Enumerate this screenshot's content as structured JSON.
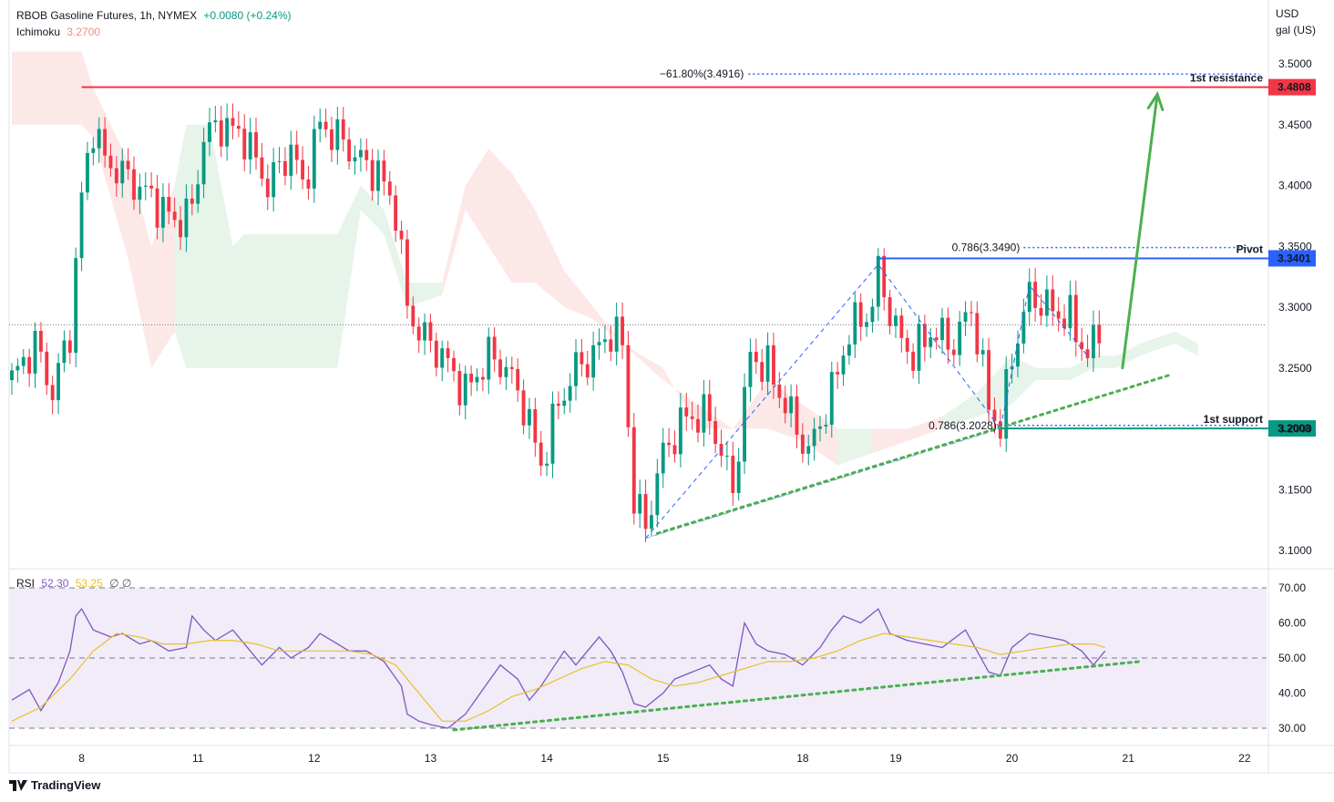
{
  "header": {
    "symbol": "RBOB Gasoline Futures, 1h, NYMEX",
    "change": "+0.0080 (+0.24%)",
    "indicator_name": "Ichimoku",
    "indicator_value": "3.2700",
    "rsi_name": "RSI",
    "rsi_value": "52.30",
    "rsi_ma_value": "53.25",
    "rsi_extra": "∅ ∅"
  },
  "axis_unit": [
    "USD",
    "gal (US)"
  ],
  "brand": "TradingView",
  "colors": {
    "up": "#089981",
    "down": "#f23645",
    "resistance": "#f23645",
    "pivot": "#2962ff",
    "support": "#089981",
    "trend": "#4caf50",
    "rsi": "#7e57c2",
    "rsi_ma": "#e9c02a",
    "cloud_bull": "#e6f4ea",
    "cloud_bear": "#fde8e8"
  },
  "chart_data": [
    {
      "type": "candlestick",
      "title": "RBOB Gasoline Futures, 1h, NYMEX",
      "ylim": [
        3.07,
        3.54
      ],
      "y_ticks": [
        "3.1000",
        "3.1500",
        "3.2000",
        "3.2500",
        "3.3000",
        "3.3500",
        "3.4000",
        "3.4500",
        "3.5000"
      ],
      "y_tick_values": [
        3.1,
        3.15,
        3.2,
        3.25,
        3.3,
        3.35,
        3.4,
        3.45,
        3.5
      ],
      "x_ticks": [
        "8",
        "11",
        "12",
        "13",
        "14",
        "15",
        "18",
        "19",
        "20",
        "21",
        "22"
      ],
      "x_tick_bars": [
        12,
        32,
        52,
        72,
        92,
        112,
        136,
        152,
        172,
        192,
        212
      ],
      "bar_count": 215,
      "close_path": [
        [
          0,
          3.24
        ],
        [
          4,
          3.27
        ],
        [
          7,
          3.23
        ],
        [
          10,
          3.28
        ],
        [
          12,
          3.39
        ],
        [
          14,
          3.45
        ],
        [
          16,
          3.42
        ],
        [
          19,
          3.41
        ],
        [
          24,
          3.39
        ],
        [
          28,
          3.37
        ],
        [
          31,
          3.38
        ],
        [
          33,
          3.44
        ],
        [
          36,
          3.45
        ],
        [
          40,
          3.44
        ],
        [
          44,
          3.4
        ],
        [
          48,
          3.43
        ],
        [
          50,
          3.4
        ],
        [
          53,
          3.45
        ],
        [
          56,
          3.44
        ],
        [
          60,
          3.42
        ],
        [
          63,
          3.41
        ],
        [
          66,
          3.38
        ],
        [
          68,
          3.3
        ],
        [
          70,
          3.28
        ],
        [
          74,
          3.26
        ],
        [
          78,
          3.23
        ],
        [
          82,
          3.26
        ],
        [
          85,
          3.25
        ],
        [
          88,
          3.22
        ],
        [
          91,
          3.17
        ],
        [
          94,
          3.22
        ],
        [
          97,
          3.25
        ],
        [
          100,
          3.26
        ],
        [
          103,
          3.28
        ],
        [
          105,
          3.27
        ],
        [
          107,
          3.14
        ],
        [
          109,
          3.12
        ],
        [
          112,
          3.18
        ],
        [
          116,
          3.21
        ],
        [
          120,
          3.21
        ],
        [
          124,
          3.15
        ],
        [
          127,
          3.26
        ],
        [
          130,
          3.25
        ],
        [
          133,
          3.22
        ],
        [
          137,
          3.18
        ],
        [
          141,
          3.23
        ],
        [
          144,
          3.28
        ],
        [
          148,
          3.3
        ],
        [
          149,
          3.33
        ],
        [
          152,
          3.28
        ],
        [
          155,
          3.26
        ],
        [
          158,
          3.28
        ],
        [
          162,
          3.27
        ],
        [
          165,
          3.3
        ],
        [
          168,
          3.22
        ],
        [
          170,
          3.2
        ],
        [
          172,
          3.26
        ],
        [
          175,
          3.31
        ],
        [
          178,
          3.3
        ],
        [
          182,
          3.29
        ],
        [
          185,
          3.26
        ],
        [
          187,
          3.28
        ]
      ],
      "cloud_top": [
        [
          0,
          3.51
        ],
        [
          12,
          3.51
        ],
        [
          14,
          3.48
        ],
        [
          20,
          3.42
        ],
        [
          24,
          3.35
        ],
        [
          28,
          3.4
        ],
        [
          30,
          3.45
        ],
        [
          34,
          3.45
        ],
        [
          38,
          3.35
        ],
        [
          40,
          3.36
        ],
        [
          50,
          3.36
        ],
        [
          56,
          3.36
        ],
        [
          60,
          3.4
        ],
        [
          64,
          3.38
        ],
        [
          68,
          3.32
        ],
        [
          74,
          3.32
        ],
        [
          78,
          3.4
        ],
        [
          82,
          3.43
        ],
        [
          86,
          3.41
        ],
        [
          90,
          3.38
        ],
        [
          95,
          3.33
        ],
        [
          100,
          3.3
        ],
        [
          105,
          3.27
        ],
        [
          112,
          3.25
        ],
        [
          118,
          3.2
        ],
        [
          124,
          3.2
        ],
        [
          130,
          3.24
        ],
        [
          136,
          3.22
        ],
        [
          142,
          3.2
        ],
        [
          148,
          3.2
        ],
        [
          154,
          3.2
        ],
        [
          160,
          3.21
        ],
        [
          166,
          3.23
        ],
        [
          172,
          3.26
        ],
        [
          176,
          3.25
        ],
        [
          182,
          3.25
        ],
        [
          186,
          3.26
        ],
        [
          190,
          3.26
        ],
        [
          194,
          3.27
        ],
        [
          200,
          3.28
        ],
        [
          204,
          3.27
        ]
      ],
      "cloud_bottom": [
        [
          0,
          3.45
        ],
        [
          12,
          3.45
        ],
        [
          14,
          3.44
        ],
        [
          20,
          3.34
        ],
        [
          24,
          3.25
        ],
        [
          28,
          3.28
        ],
        [
          30,
          3.25
        ],
        [
          34,
          3.25
        ],
        [
          38,
          3.25
        ],
        [
          40,
          3.25
        ],
        [
          50,
          3.25
        ],
        [
          56,
          3.25
        ],
        [
          60,
          3.38
        ],
        [
          64,
          3.36
        ],
        [
          68,
          3.3
        ],
        [
          74,
          3.31
        ],
        [
          78,
          3.38
        ],
        [
          82,
          3.35
        ],
        [
          86,
          3.32
        ],
        [
          90,
          3.32
        ],
        [
          95,
          3.3
        ],
        [
          100,
          3.29
        ],
        [
          105,
          3.27
        ],
        [
          112,
          3.24
        ],
        [
          118,
          3.22
        ],
        [
          124,
          3.2
        ],
        [
          130,
          3.2
        ],
        [
          136,
          3.19
        ],
        [
          142,
          3.17
        ],
        [
          148,
          3.18
        ],
        [
          154,
          3.19
        ],
        [
          160,
          3.2
        ],
        [
          166,
          3.21
        ],
        [
          172,
          3.22
        ],
        [
          176,
          3.24
        ],
        [
          182,
          3.24
        ],
        [
          186,
          3.25
        ],
        [
          190,
          3.25
        ],
        [
          194,
          3.26
        ],
        [
          200,
          3.27
        ],
        [
          204,
          3.26
        ]
      ],
      "cloud_color_by_segment": [
        "bear",
        "bear",
        "bear",
        "bear",
        "bear",
        "bull",
        "bull",
        "bull",
        "bull",
        "bull",
        "bull",
        "bull",
        "bull",
        "bull",
        "bull",
        "bear",
        "bear",
        "bear",
        "bear",
        "bear",
        "bear",
        "bear",
        "bear",
        "bear",
        "bear",
        "bear",
        "bear",
        "bear",
        "bull",
        "bear",
        "bear",
        "bull",
        "bull",
        "bull",
        "bull",
        "bull",
        "bull",
        "bull",
        "bull",
        "bull"
      ],
      "last_price_line": 3.2855,
      "levels": [
        {
          "name": "resistance",
          "value": 3.4808,
          "label": "3.4808",
          "text": "1st resistance",
          "from_bar": 12
        },
        {
          "name": "pivot",
          "value": 3.3401,
          "label": "3.3401",
          "text": "Pivot",
          "from_bar": 149
        },
        {
          "name": "support",
          "value": 3.2003,
          "label": "3.2003",
          "text": "1st support",
          "from_bar": 170
        }
      ],
      "fib_lines": [
        {
          "label": "−61.80%(3.4916)",
          "value": 3.4916,
          "from_bar": 111
        },
        {
          "label": "0.786(3.3490)",
          "value": 3.349,
          "from_bar": 174
        },
        {
          "label": "0.786(3.2028)",
          "value": 3.2028,
          "from_bar": 170
        }
      ],
      "harmonic_pattern": [
        [
          109,
          3.11
        ],
        [
          149,
          3.335
        ],
        [
          170,
          3.2
        ],
        [
          175,
          3.318
        ],
        [
          185,
          3.26
        ]
      ],
      "trendline": [
        [
          111,
          3.114
        ],
        [
          199,
          3.244
        ]
      ],
      "arrow": [
        [
          191,
          3.25
        ],
        [
          197,
          3.475
        ]
      ]
    },
    {
      "type": "line",
      "title": "RSI",
      "ylim": [
        28,
        72
      ],
      "y_ticks": [
        "30.00",
        "40.00",
        "50.00",
        "60.00",
        "70.00"
      ],
      "y_tick_values": [
        30,
        40,
        50,
        60,
        70
      ],
      "band": [
        30,
        70
      ],
      "series": [
        {
          "name": "RSI",
          "values": [
            [
              0,
              38
            ],
            [
              3,
              41
            ],
            [
              5,
              35
            ],
            [
              8,
              43
            ],
            [
              10,
              52
            ],
            [
              11,
              62
            ],
            [
              12,
              64
            ],
            [
              14,
              58
            ],
            [
              17,
              56
            ],
            [
              19,
              57
            ],
            [
              22,
              54
            ],
            [
              24,
              55
            ],
            [
              27,
              52
            ],
            [
              30,
              53
            ],
            [
              31,
              62
            ],
            [
              33,
              58
            ],
            [
              35,
              55
            ],
            [
              38,
              58
            ],
            [
              40,
              54
            ],
            [
              43,
              48
            ],
            [
              46,
              53
            ],
            [
              48,
              50
            ],
            [
              51,
              53
            ],
            [
              53,
              57
            ],
            [
              56,
              54
            ],
            [
              58,
              52
            ],
            [
              61,
              52
            ],
            [
              64,
              49
            ],
            [
              67,
              42
            ],
            [
              68,
              34
            ],
            [
              70,
              32
            ],
            [
              72,
              31
            ],
            [
              75,
              30
            ],
            [
              78,
              34
            ],
            [
              81,
              41
            ],
            [
              84,
              48
            ],
            [
              87,
              44
            ],
            [
              89,
              38
            ],
            [
              91,
              42
            ],
            [
              93,
              47
            ],
            [
              95,
              52
            ],
            [
              97,
              48
            ],
            [
              99,
              52
            ],
            [
              101,
              56
            ],
            [
              103,
              52
            ],
            [
              105,
              46
            ],
            [
              107,
              37
            ],
            [
              109,
              36
            ],
            [
              112,
              40
            ],
            [
              114,
              44
            ],
            [
              117,
              46
            ],
            [
              120,
              48
            ],
            [
              122,
              44
            ],
            [
              124,
              42
            ],
            [
              126,
              60
            ],
            [
              128,
              54
            ],
            [
              130,
              52
            ],
            [
              133,
              51
            ],
            [
              136,
              48
            ],
            [
              139,
              53
            ],
            [
              141,
              58
            ],
            [
              143,
              62
            ],
            [
              146,
              60
            ],
            [
              149,
              64
            ],
            [
              151,
              57
            ],
            [
              154,
              55
            ],
            [
              157,
              54
            ],
            [
              160,
              53
            ],
            [
              164,
              58
            ],
            [
              166,
              52
            ],
            [
              168,
              46
            ],
            [
              170,
              45
            ],
            [
              172,
              53
            ],
            [
              175,
              57
            ],
            [
              178,
              56
            ],
            [
              181,
              55
            ],
            [
              184,
              52
            ],
            [
              186,
              48
            ],
            [
              188,
              52
            ]
          ]
        },
        {
          "name": "RSI MA",
          "values": [
            [
              0,
              32
            ],
            [
              5,
              36
            ],
            [
              10,
              44
            ],
            [
              14,
              52
            ],
            [
              18,
              57
            ],
            [
              22,
              56
            ],
            [
              26,
              54
            ],
            [
              30,
              54
            ],
            [
              34,
              55
            ],
            [
              38,
              55
            ],
            [
              42,
              54
            ],
            [
              46,
              52
            ],
            [
              50,
              52
            ],
            [
              54,
              52
            ],
            [
              58,
              52
            ],
            [
              62,
              51
            ],
            [
              66,
              48
            ],
            [
              70,
              40
            ],
            [
              74,
              32
            ],
            [
              78,
              32
            ],
            [
              82,
              35
            ],
            [
              86,
              39
            ],
            [
              90,
              41
            ],
            [
              94,
              44
            ],
            [
              98,
              47
            ],
            [
              102,
              49
            ],
            [
              106,
              48
            ],
            [
              110,
              44
            ],
            [
              114,
              42
            ],
            [
              118,
              43
            ],
            [
              122,
              45
            ],
            [
              126,
              47
            ],
            [
              130,
              49
            ],
            [
              134,
              49
            ],
            [
              138,
              50
            ],
            [
              142,
              52
            ],
            [
              146,
              55
            ],
            [
              150,
              57
            ],
            [
              154,
              56
            ],
            [
              158,
              55
            ],
            [
              162,
              54
            ],
            [
              166,
              53
            ],
            [
              170,
              51
            ],
            [
              174,
              52
            ],
            [
              178,
              53
            ],
            [
              182,
              54
            ],
            [
              186,
              54
            ],
            [
              188,
              53
            ]
          ]
        }
      ],
      "trendline": [
        [
          76,
          29.5
        ],
        [
          194,
          49
        ]
      ]
    }
  ]
}
